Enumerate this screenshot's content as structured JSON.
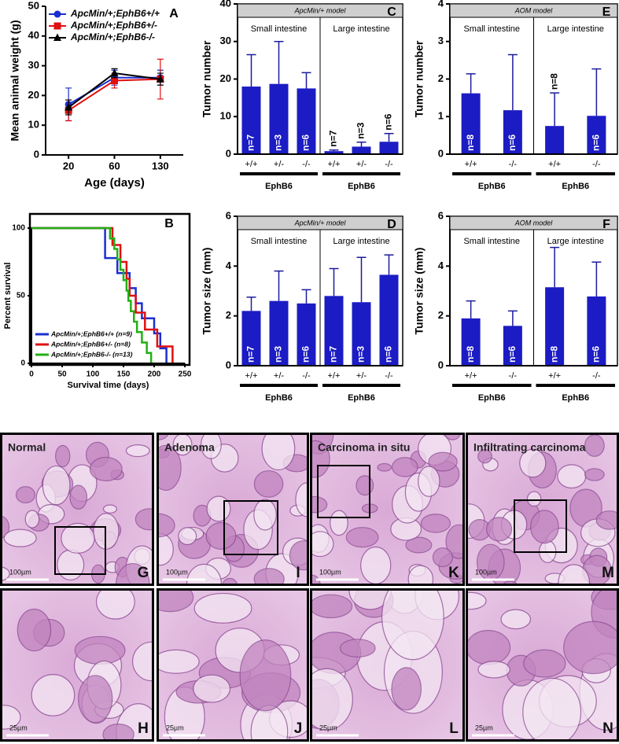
{
  "chart_data": [
    {
      "type": "line",
      "panel_label": "A",
      "xlabel": "Age (days)",
      "ylabel": "Mean animal weight (g)",
      "categories": [
        "20",
        "60",
        "130"
      ],
      "ylim": [
        0,
        50
      ],
      "yticks": [
        0,
        10,
        20,
        30,
        40,
        50
      ],
      "legend": "upper left",
      "series": [
        {
          "name": "ApcMin/+;EphB6+/+",
          "color": "#1a2fd0",
          "marker": "circle",
          "values": [
            17,
            26,
            26
          ],
          "errors": [
            5.5,
            2.5,
            2.5
          ]
        },
        {
          "name": "ApcMin/+;EphB6+/-",
          "color": "#e01010",
          "marker": "square",
          "values": [
            15,
            25,
            25.5
          ],
          "errors": [
            3.5,
            2.5,
            6.7
          ]
        },
        {
          "name": "ApcMin/+;EphB6-/-",
          "color": "#000000",
          "marker": "triangle",
          "values": [
            16,
            27.5,
            25.5
          ],
          "errors": [
            2.5,
            1.5,
            2
          ]
        }
      ]
    },
    {
      "type": "step",
      "panel_label": "B",
      "xlabel": "Survival time (days)",
      "ylabel": "Percent survival",
      "xlim": [
        0,
        250
      ],
      "xticks": [
        0,
        50,
        100,
        150,
        200,
        250
      ],
      "ylim": [
        0,
        100
      ],
      "yticks": [
        0,
        50,
        100
      ],
      "legend": "lower left",
      "series": [
        {
          "name": "ApcMin/+;EphB6+/+ (n=9)",
          "color": "#1a2fd0",
          "x": [
            0,
            120,
            140,
            160,
            170,
            180,
            200,
            210,
            220
          ],
          "values": [
            100,
            77.8,
            66.7,
            55.6,
            44.4,
            33.3,
            22.2,
            11.1,
            0
          ]
        },
        {
          "name": "ApcMin/+;EphB6+/- (n=8)",
          "color": "#e01010",
          "x": [
            0,
            132,
            145,
            155,
            160,
            170,
            185,
            205,
            230
          ],
          "values": [
            100,
            87.5,
            75,
            62.5,
            50,
            37.5,
            25,
            12.5,
            0
          ]
        },
        {
          "name": "ApcMin/+;EphB6-/- (n=13)",
          "color": "#22b014",
          "x": [
            0,
            128,
            135,
            140,
            145,
            150,
            155,
            158,
            162,
            167,
            172,
            180,
            188,
            195
          ],
          "values": [
            100,
            92.3,
            84.6,
            76.9,
            69.2,
            61.5,
            53.8,
            46.2,
            38.5,
            30.8,
            23.1,
            15.4,
            7.7,
            0
          ]
        }
      ]
    },
    {
      "type": "bar",
      "panel_label": "C",
      "header": "ApcMin/+ model",
      "ylabel": "Tumor number",
      "color": "#1c1cc4",
      "ylim": [
        0,
        40
      ],
      "yticks": [
        0,
        10,
        20,
        30,
        40
      ],
      "groups": [
        {
          "name": "Small intestine",
          "axis_label": "EphB6",
          "categories": [
            "+/+",
            "+/-",
            "-/-"
          ],
          "values": [
            18,
            18.7,
            17.5
          ],
          "errors": [
            8.5,
            11.3,
            4.2
          ],
          "bar_labels": [
            "n=7",
            "n=3",
            "n=6"
          ]
        },
        {
          "name": "Large intestine",
          "axis_label": "EphB6",
          "categories": [
            "+/+",
            "+/-",
            "-/-"
          ],
          "values": [
            0.8,
            2,
            3.3
          ],
          "errors": [
            0.3,
            1.2,
            2.2
          ],
          "bar_labels": [
            "n=7",
            "n=3",
            "n=6"
          ]
        }
      ]
    },
    {
      "type": "bar",
      "panel_label": "D",
      "header": "ApcMin/+ model",
      "ylabel": "Tumor size (mm)",
      "color": "#1c1cc4",
      "ylim": [
        0,
        6
      ],
      "yticks": [
        0,
        2,
        4,
        6
      ],
      "groups": [
        {
          "name": "Small intestine",
          "axis_label": "EphB6",
          "categories": [
            "+/+",
            "+/-",
            "-/-"
          ],
          "values": [
            2.2,
            2.6,
            2.5
          ],
          "errors": [
            0.55,
            1.2,
            0.55
          ],
          "bar_labels": [
            "n=7",
            "n=3",
            "n=6"
          ]
        },
        {
          "name": "Large intestine",
          "axis_label": "EphB6",
          "categories": [
            "+/+",
            "+/-",
            "-/-"
          ],
          "values": [
            2.8,
            2.55,
            3.65
          ],
          "errors": [
            1.1,
            1.8,
            0.8
          ],
          "bar_labels": [
            "n=7",
            "n=3",
            "n=6"
          ]
        }
      ]
    },
    {
      "type": "bar",
      "panel_label": "E",
      "header": "AOM model",
      "ylabel": "Tumor number",
      "color": "#1c1cc4",
      "ylim": [
        0,
        4
      ],
      "yticks": [
        0,
        1,
        2,
        3,
        4
      ],
      "groups": [
        {
          "name": "Small intestine",
          "axis_label": "EphB6",
          "categories": [
            "+/+",
            "-/-"
          ],
          "values": [
            1.62,
            1.17
          ],
          "errors": [
            0.52,
            1.48
          ],
          "bar_labels": [
            "n=8",
            "n=6"
          ]
        },
        {
          "name": "Large intestine",
          "axis_label": "EphB6",
          "categories": [
            "+/+",
            "-/-"
          ],
          "values": [
            0.75,
            1.02
          ],
          "errors": [
            0.88,
            1.25
          ],
          "bar_labels": [
            "n=8",
            "n=6"
          ]
        }
      ]
    },
    {
      "type": "bar",
      "panel_label": "F",
      "header": "AOM model",
      "ylabel": "Tumor size (mm)",
      "color": "#1c1cc4",
      "ylim": [
        0,
        6
      ],
      "yticks": [
        0,
        2,
        4,
        6
      ],
      "groups": [
        {
          "name": "Small intestine",
          "axis_label": "EphB6",
          "categories": [
            "+/+",
            "-/-"
          ],
          "values": [
            1.9,
            1.6
          ],
          "errors": [
            0.7,
            0.6
          ],
          "bar_labels": [
            "n=8",
            "n=6"
          ]
        },
        {
          "name": "Large intestine",
          "axis_label": "EphB6",
          "categories": [
            "+/+",
            "-/-"
          ],
          "values": [
            3.15,
            2.78
          ],
          "errors": [
            1.6,
            1.38
          ],
          "bar_labels": [
            "n=8",
            "n=6"
          ]
        }
      ]
    }
  ],
  "micrographs": [
    {
      "title": "Normal",
      "scale": "100µm",
      "label": "G"
    },
    {
      "title": "Adenoma",
      "scale": "100µm",
      "label": "I"
    },
    {
      "title": "Carcinoma in situ",
      "scale": "100µm",
      "label": "K"
    },
    {
      "title": "Infiltrating carcinoma",
      "scale": "100µm",
      "label": "M"
    },
    {
      "scale": "25µm",
      "label": "H"
    },
    {
      "scale": "25µm",
      "label": "J"
    },
    {
      "scale": "25µm",
      "label": "L"
    },
    {
      "scale": "25µm",
      "label": "N"
    }
  ]
}
